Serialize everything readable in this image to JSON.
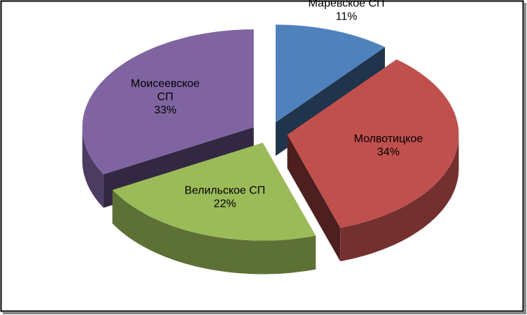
{
  "chart_data": {
    "type": "pie3d",
    "categories": [
      "Маревское СП",
      "Молвотицкое",
      "Велильское СП",
      "Моисеевское СП"
    ],
    "values": [
      11,
      34,
      22,
      33
    ],
    "value_labels": [
      "11%",
      "34%",
      "22%",
      "33%"
    ],
    "colors": [
      "#4f81bd",
      "#c0504d",
      "#9bbb59",
      "#8064a2"
    ]
  }
}
